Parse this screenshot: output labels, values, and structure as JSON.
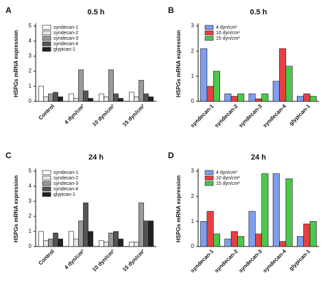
{
  "chart_data": [
    {
      "type": "bar",
      "panel": "A",
      "title": "0.5 h",
      "y_label": "HSPGs mRNA expression",
      "categories": [
        "Control",
        "4 dyn/cm²",
        "10 dyn/cm²",
        "15 dyn/cm²"
      ],
      "series": [
        {
          "name": "syndecan-1",
          "color": "#ffffff",
          "values": [
            1.0,
            0.5,
            0.5,
            0.6
          ]
        },
        {
          "name": "syndecan-2",
          "color": "#e6e6e6",
          "values": [
            0.3,
            0.2,
            0.3,
            0.3
          ]
        },
        {
          "name": "syndecan-3",
          "color": "#9a9a9a",
          "values": [
            0.5,
            2.1,
            2.1,
            1.4
          ]
        },
        {
          "name": "syndecan-4",
          "color": "#555555",
          "values": [
            0.6,
            0.7,
            0.5,
            0.5
          ]
        },
        {
          "name": "glypican-1",
          "color": "#222222",
          "values": [
            0.3,
            0.2,
            0.2,
            0.3
          ]
        }
      ],
      "ylim": [
        0,
        5
      ],
      "yticks": [
        0,
        1,
        2,
        3,
        4,
        5
      ]
    },
    {
      "type": "bar",
      "panel": "B",
      "title": "0.5 h",
      "y_label": "HSPGs mRNA expression",
      "categories": [
        "syndecan-1",
        "syndecan-2",
        "syndecan-3",
        "syndecan-4",
        "glypican-1"
      ],
      "series": [
        {
          "name": "4 dyn/cm²",
          "color": "#7f9ef0",
          "values": [
            2.1,
            0.3,
            0.3,
            0.8,
            0.2
          ]
        },
        {
          "name": "10 dyn/cm²",
          "color": "#e84040",
          "values": [
            0.6,
            0.2,
            0.1,
            2.1,
            0.3
          ]
        },
        {
          "name": "15 dyn/cm²",
          "color": "#4cc84c",
          "values": [
            1.2,
            0.3,
            0.3,
            1.4,
            0.2
          ]
        }
      ],
      "ylim": [
        0,
        3
      ],
      "yticks": [
        0,
        1,
        2,
        3
      ]
    },
    {
      "type": "bar",
      "panel": "C",
      "title": "24 h",
      "y_label": "HSPGs mRNA expression",
      "categories": [
        "Control",
        "4 dyn/cm²",
        "10 dyn/cm²",
        "15 dyn/cm²"
      ],
      "series": [
        {
          "name": "syndecan-1",
          "color": "#ffffff",
          "values": [
            1.0,
            1.0,
            0.4,
            0.3
          ]
        },
        {
          "name": "syndecan-2",
          "color": "#e6e6e6",
          "values": [
            0.4,
            0.5,
            0.3,
            0.3
          ]
        },
        {
          "name": "syndecan-3",
          "color": "#9a9a9a",
          "values": [
            0.5,
            1.7,
            0.9,
            2.9
          ]
        },
        {
          "name": "syndecan-4",
          "color": "#555555",
          "values": [
            0.9,
            2.9,
            1.0,
            1.7
          ]
        },
        {
          "name": "glypican-1",
          "color": "#222222",
          "values": [
            0.5,
            1.0,
            0.5,
            1.7
          ]
        }
      ],
      "ylim": [
        0,
        5
      ],
      "yticks": [
        0,
        1,
        2,
        3,
        4,
        5
      ]
    },
    {
      "type": "bar",
      "panel": "D",
      "title": "24 h",
      "y_label": "HSPGs mRNA expression",
      "categories": [
        "syndecan-1",
        "syndecan-2",
        "syndecan-3",
        "syndecan-4",
        "glypican-1"
      ],
      "series": [
        {
          "name": "4 dyn/cm²",
          "color": "#7f9ef0",
          "values": [
            1.0,
            0.3,
            1.4,
            2.9,
            0.4
          ]
        },
        {
          "name": "10 dyn/cm²",
          "color": "#e84040",
          "values": [
            1.4,
            0.6,
            0.5,
            0.2,
            0.9
          ]
        },
        {
          "name": "15 dyn/cm²",
          "color": "#4cc84c",
          "values": [
            0.5,
            0.4,
            2.9,
            2.7,
            1.0
          ]
        }
      ],
      "ylim": [
        0,
        3
      ],
      "yticks": [
        0,
        1,
        2,
        3
      ]
    }
  ]
}
